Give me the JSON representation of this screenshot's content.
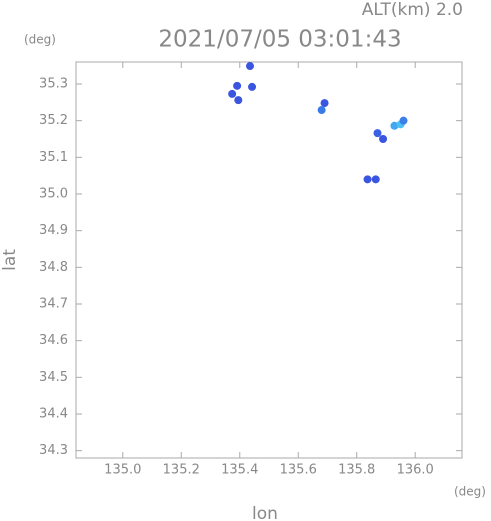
{
  "chart_data": {
    "type": "scatter",
    "title": "2021/07/05 03:01:43",
    "subtitle": "ALT(km) 2.0",
    "x_label": "lon",
    "y_label": "lat",
    "x_unit": "(deg)",
    "y_unit": "(deg)",
    "x": [
      135.435,
      135.391,
      135.442,
      135.374,
      135.395,
      135.69,
      135.68,
      135.871,
      135.89,
      135.929,
      135.95,
      135.96,
      135.837,
      135.865
    ],
    "y": [
      35.349,
      35.295,
      35.292,
      35.273,
      35.256,
      35.248,
      35.229,
      35.166,
      35.15,
      35.186,
      35.19,
      35.2,
      35.04,
      35.04
    ],
    "colors": [
      "#3a55e0",
      "#3a55e0",
      "#3a55e0",
      "#3a55e0",
      "#3a55e0",
      "#3a55e0",
      "#3a7ae8",
      "#3a60e8",
      "#3a55e0",
      "#3fa8f0",
      "#4cc0f5",
      "#3a80e8",
      "#3a55e0",
      "#3a55e0"
    ],
    "xlim": [
      134.84,
      136.16
    ],
    "ylim": [
      34.28,
      35.36
    ],
    "xticks": [
      {
        "value": 135,
        "label": "135.0"
      },
      135.2,
      135.4,
      135.6,
      135.8,
      {
        "value": 136,
        "label": "136.0"
      }
    ],
    "yticks": [
      34.3,
      34.4,
      34.5,
      34.6,
      34.7,
      34.8,
      34.9,
      {
        "value": 35,
        "label": "35.0"
      },
      35.1,
      35.2,
      35.3
    ],
    "grid": false
  }
}
